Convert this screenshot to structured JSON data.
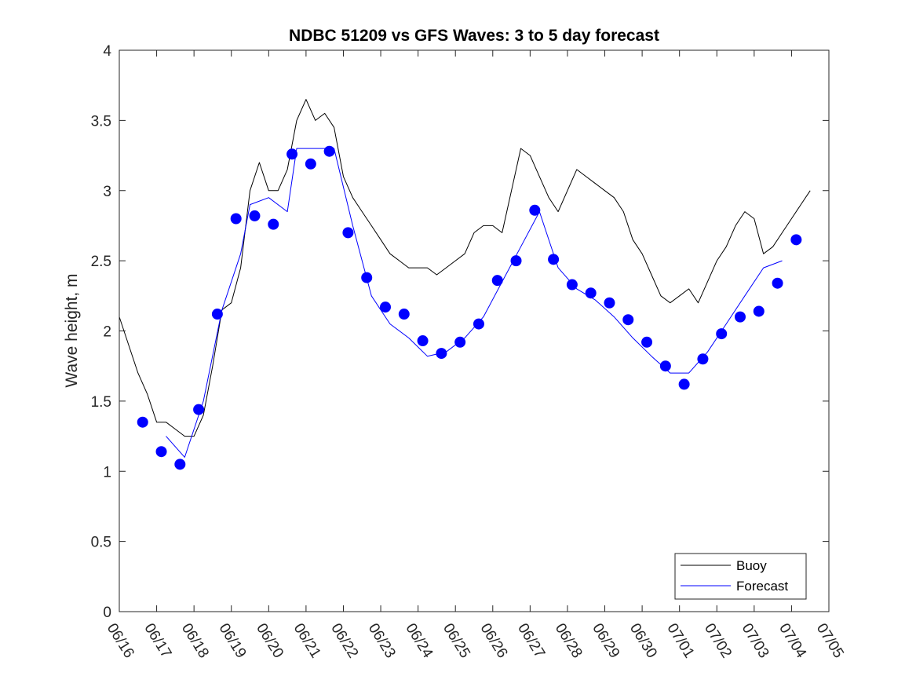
{
  "chart_data": {
    "type": "line",
    "title": "NDBC 51209 vs GFS Waves: 3 to 5 day forecast",
    "xlabel": "",
    "ylabel": "Wave height, m",
    "ylim": [
      0,
      4
    ],
    "xlim": [
      "06/16",
      "07/05"
    ],
    "x_ticks": [
      "06/16",
      "06/17",
      "06/18",
      "06/19",
      "06/20",
      "06/21",
      "06/22",
      "06/23",
      "06/24",
      "06/25",
      "06/26",
      "06/27",
      "06/28",
      "06/29",
      "06/30",
      "07/01",
      "07/02",
      "07/03",
      "07/04",
      "07/05"
    ],
    "y_ticks": [
      "0",
      "0.5",
      "1",
      "1.5",
      "2",
      "2.5",
      "3",
      "3.5",
      "4"
    ],
    "grid": false,
    "legend": {
      "position": "bottom-right",
      "entries": [
        "Buoy",
        "Forecast"
      ]
    },
    "colors": {
      "buoy": "#000000",
      "forecast": "#0000ff"
    },
    "series": [
      {
        "name": "Buoy",
        "style": "thin-line",
        "points": [
          [
            "06/16 00:00",
            2.1
          ],
          [
            "06/16 06:00",
            1.9
          ],
          [
            "06/16 12:00",
            1.7
          ],
          [
            "06/16 18:00",
            1.55
          ],
          [
            "06/17 00:00",
            1.35
          ],
          [
            "06/17 06:00",
            1.35
          ],
          [
            "06/17 12:00",
            1.3
          ],
          [
            "06/17 18:00",
            1.25
          ],
          [
            "06/18 00:00",
            1.25
          ],
          [
            "06/18 06:00",
            1.4
          ],
          [
            "06/18 12:00",
            1.75
          ],
          [
            "06/18 18:00",
            2.15
          ],
          [
            "06/19 00:00",
            2.2
          ],
          [
            "06/19 06:00",
            2.45
          ],
          [
            "06/19 12:00",
            3.0
          ],
          [
            "06/19 18:00",
            3.2
          ],
          [
            "06/20 00:00",
            3.0
          ],
          [
            "06/20 06:00",
            3.0
          ],
          [
            "06/20 12:00",
            3.15
          ],
          [
            "06/20 18:00",
            3.5
          ],
          [
            "06/21 00:00",
            3.65
          ],
          [
            "06/21 06:00",
            3.5
          ],
          [
            "06/21 12:00",
            3.55
          ],
          [
            "06/21 18:00",
            3.45
          ],
          [
            "06/22 00:00",
            3.1
          ],
          [
            "06/22 06:00",
            2.95
          ],
          [
            "06/22 12:00",
            2.85
          ],
          [
            "06/22 18:00",
            2.75
          ],
          [
            "06/23 00:00",
            2.65
          ],
          [
            "06/23 06:00",
            2.55
          ],
          [
            "06/23 12:00",
            2.5
          ],
          [
            "06/23 18:00",
            2.45
          ],
          [
            "06/24 00:00",
            2.45
          ],
          [
            "06/24 06:00",
            2.45
          ],
          [
            "06/24 12:00",
            2.4
          ],
          [
            "06/24 18:00",
            2.45
          ],
          [
            "06/25 00:00",
            2.5
          ],
          [
            "06/25 06:00",
            2.55
          ],
          [
            "06/25 12:00",
            2.7
          ],
          [
            "06/25 18:00",
            2.75
          ],
          [
            "06/26 00:00",
            2.75
          ],
          [
            "06/26 06:00",
            2.7
          ],
          [
            "06/26 12:00",
            3.0
          ],
          [
            "06/26 18:00",
            3.3
          ],
          [
            "06/27 00:00",
            3.25
          ],
          [
            "06/27 06:00",
            3.1
          ],
          [
            "06/27 12:00",
            2.95
          ],
          [
            "06/27 18:00",
            2.85
          ],
          [
            "06/28 00:00",
            3.0
          ],
          [
            "06/28 06:00",
            3.15
          ],
          [
            "06/28 12:00",
            3.1
          ],
          [
            "06/28 18:00",
            3.05
          ],
          [
            "06/29 00:00",
            3.0
          ],
          [
            "06/29 06:00",
            2.95
          ],
          [
            "06/29 12:00",
            2.85
          ],
          [
            "06/29 18:00",
            2.65
          ],
          [
            "06/30 00:00",
            2.55
          ],
          [
            "06/30 06:00",
            2.4
          ],
          [
            "06/30 12:00",
            2.25
          ],
          [
            "06/30 18:00",
            2.2
          ],
          [
            "07/01 00:00",
            2.25
          ],
          [
            "07/01 06:00",
            2.3
          ],
          [
            "07/01 12:00",
            2.2
          ],
          [
            "07/01 18:00",
            2.35
          ],
          [
            "07/02 00:00",
            2.5
          ],
          [
            "07/02 06:00",
            2.6
          ],
          [
            "07/02 12:00",
            2.75
          ],
          [
            "07/02 18:00",
            2.85
          ],
          [
            "07/03 00:00",
            2.8
          ],
          [
            "07/03 06:00",
            2.55
          ],
          [
            "07/03 12:00",
            2.6
          ],
          [
            "07/03 18:00",
            2.7
          ],
          [
            "07/04 00:00",
            2.8
          ],
          [
            "07/04 06:00",
            2.9
          ],
          [
            "07/04 12:00",
            3.0
          ]
        ]
      },
      {
        "name": "Forecast",
        "style": "markers",
        "points": [
          [
            "06/16 15:00",
            1.35
          ],
          [
            "06/17 03:00",
            1.14
          ],
          [
            "06/17 15:00",
            1.05
          ],
          [
            "06/18 03:00",
            1.44
          ],
          [
            "06/18 15:00",
            2.12
          ],
          [
            "06/19 03:00",
            2.8
          ],
          [
            "06/19 15:00",
            2.82
          ],
          [
            "06/20 03:00",
            2.76
          ],
          [
            "06/20 15:00",
            3.26
          ],
          [
            "06/21 03:00",
            3.19
          ],
          [
            "06/21 15:00",
            3.28
          ],
          [
            "06/22 03:00",
            2.7
          ],
          [
            "06/22 15:00",
            2.38
          ],
          [
            "06/23 03:00",
            2.17
          ],
          [
            "06/23 15:00",
            2.12
          ],
          [
            "06/24 03:00",
            1.93
          ],
          [
            "06/24 15:00",
            1.84
          ],
          [
            "06/25 03:00",
            1.92
          ],
          [
            "06/25 15:00",
            2.05
          ],
          [
            "06/26 03:00",
            2.36
          ],
          [
            "06/26 15:00",
            2.5
          ],
          [
            "06/27 03:00",
            2.86
          ],
          [
            "06/27 15:00",
            2.51
          ],
          [
            "06/28 03:00",
            2.33
          ],
          [
            "06/28 15:00",
            2.27
          ],
          [
            "06/29 03:00",
            2.2
          ],
          [
            "06/29 15:00",
            2.08
          ],
          [
            "06/30 03:00",
            1.92
          ],
          [
            "06/30 15:00",
            1.75
          ],
          [
            "07/01 03:00",
            1.62
          ],
          [
            "07/01 15:00",
            1.8
          ],
          [
            "07/02 03:00",
            1.98
          ],
          [
            "07/02 15:00",
            2.1
          ],
          [
            "07/03 03:00",
            2.14
          ],
          [
            "07/03 15:00",
            2.34
          ],
          [
            "07/04 03:00",
            2.65
          ]
        ]
      },
      {
        "name": "Forecast",
        "style": "thin-line",
        "points": [
          [
            "06/17 06:00",
            1.25
          ],
          [
            "06/17 18:00",
            1.1
          ],
          [
            "06/18 06:00",
            1.5
          ],
          [
            "06/18 18:00",
            2.15
          ],
          [
            "06/19 06:00",
            2.55
          ],
          [
            "06/19 12:00",
            2.9
          ],
          [
            "06/20 00:00",
            2.95
          ],
          [
            "06/20 12:00",
            2.85
          ],
          [
            "06/20 18:00",
            3.3
          ],
          [
            "06/21 06:00",
            3.3
          ],
          [
            "06/21 18:00",
            3.3
          ],
          [
            "06/22 06:00",
            2.75
          ],
          [
            "06/22 18:00",
            2.25
          ],
          [
            "06/23 06:00",
            2.05
          ],
          [
            "06/23 18:00",
            1.95
          ],
          [
            "06/24 06:00",
            1.82
          ],
          [
            "06/24 18:00",
            1.85
          ],
          [
            "06/25 06:00",
            1.95
          ],
          [
            "06/25 18:00",
            2.1
          ],
          [
            "06/26 06:00",
            2.35
          ],
          [
            "06/26 18:00",
            2.6
          ],
          [
            "06/27 06:00",
            2.85
          ],
          [
            "06/27 18:00",
            2.45
          ],
          [
            "06/28 06:00",
            2.3
          ],
          [
            "06/28 18:00",
            2.22
          ],
          [
            "06/29 06:00",
            2.1
          ],
          [
            "06/29 18:00",
            1.95
          ],
          [
            "06/30 06:00",
            1.82
          ],
          [
            "06/30 18:00",
            1.7
          ],
          [
            "07/01 06:00",
            1.7
          ],
          [
            "07/01 18:00",
            1.85
          ],
          [
            "07/02 06:00",
            2.05
          ],
          [
            "07/02 18:00",
            2.25
          ],
          [
            "07/03 06:00",
            2.45
          ],
          [
            "07/03 18:00",
            2.5
          ]
        ]
      }
    ]
  }
}
